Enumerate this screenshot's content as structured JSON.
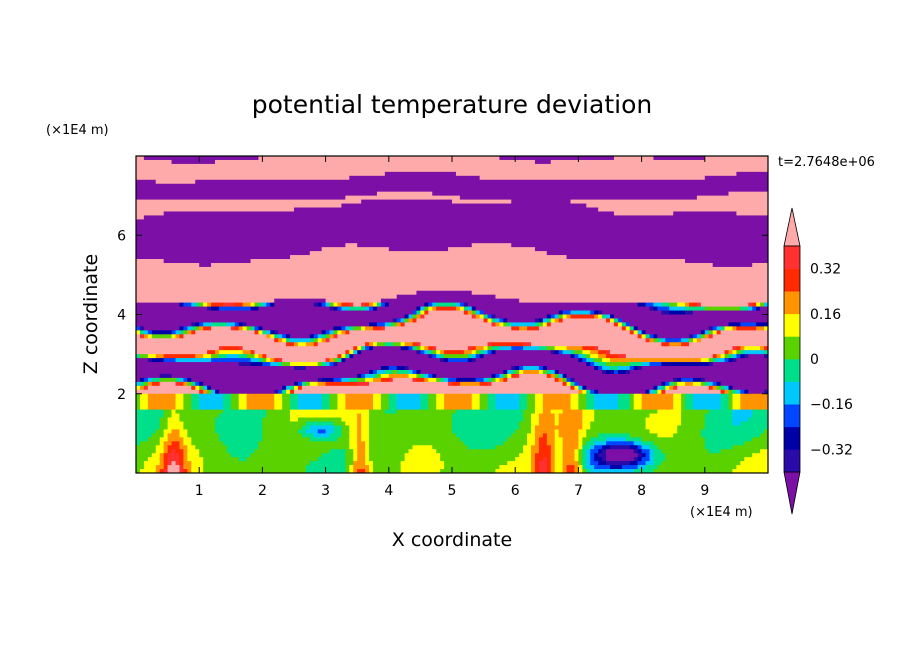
{
  "chart_data": {
    "type": "heatmap",
    "subtype": "filled-contour",
    "title": "potential temperature deviation",
    "xlabel": "X coordinate",
    "ylabel": "Z coordinate",
    "x_unit_label": "(×1E4 m)",
    "y_unit_label": "(×1E4 m)",
    "time_label": "t=2.7648e+06",
    "xlim": [
      0,
      10
    ],
    "ylim": [
      0,
      8
    ],
    "x_ticks": [
      1,
      2,
      3,
      4,
      5,
      6,
      7,
      8,
      9
    ],
    "y_ticks": [
      2,
      4,
      6
    ],
    "colorbar": {
      "tick_labels": [
        "0.32",
        "0.16",
        "0",
        "−0.16",
        "−0.32"
      ],
      "tick_values": [
        0.32,
        0.16,
        0,
        -0.16,
        -0.32
      ],
      "levels": [
        -0.4,
        -0.32,
        -0.24,
        -0.16,
        -0.08,
        0,
        0.08,
        0.16,
        0.24,
        0.32,
        0.4
      ],
      "colors": [
        "#7b0fa6",
        "#2a0aa8",
        "#0000a8",
        "#0046ff",
        "#00c8ff",
        "#00e08a",
        "#5ad200",
        "#ffff00",
        "#ff9400",
        "#ff2a00",
        "#ff3030",
        "#ffaaaa"
      ],
      "extend": "both"
    },
    "layers": [
      {
        "z_range": [
          7.45,
          8.0
        ],
        "pattern": "alternating bands",
        "dominant_values": [
          -0.45,
          0.45
        ]
      },
      {
        "z_range": [
          6.9,
          7.45
        ],
        "pattern": "alternating bands",
        "dominant_values": [
          0.45,
          -0.45
        ]
      },
      {
        "z_range": [
          5.3,
          6.9
        ],
        "pattern": "alternating bands",
        "dominant_values": [
          -0.45,
          0.45
        ]
      },
      {
        "z_range": [
          4.3,
          5.3
        ],
        "pattern": "pink with purple patches",
        "dominant_values": [
          0.45,
          -0.45
        ]
      },
      {
        "z_range": [
          2.0,
          4.3
        ],
        "pattern": "turbulent mixed layer",
        "dominant_values": [
          -0.45,
          0.45,
          0.3,
          0.0,
          -0.2
        ]
      },
      {
        "z_range": [
          1.65,
          2.0
        ],
        "pattern": "thin interface",
        "dominant_values": [
          0.2,
          -0.1
        ]
      },
      {
        "z_range": [
          0.0,
          1.65
        ],
        "pattern": "convective eddies",
        "dominant_values": [
          0.0,
          0.05,
          -0.1,
          0.3,
          -0.35
        ]
      }
    ]
  }
}
